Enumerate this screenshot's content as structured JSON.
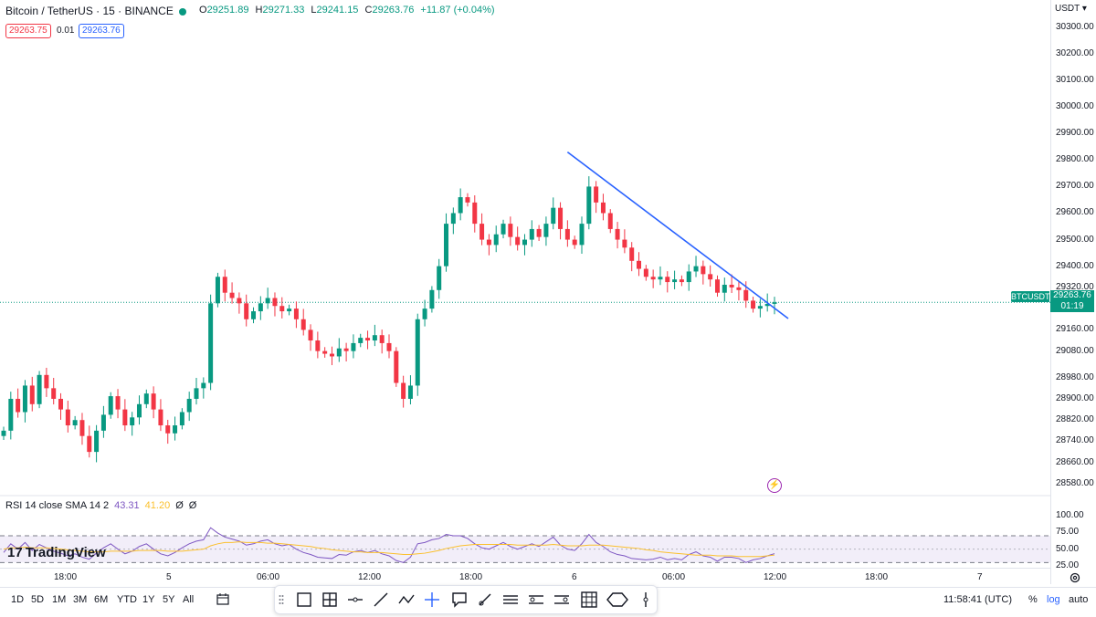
{
  "header": {
    "title": "Bitcoin / TetherUS · 15 · BINANCE",
    "ohlc": {
      "o_label": "O",
      "o": "29251.89",
      "h_label": "H",
      "h": "29271.33",
      "l_label": "L",
      "l": "29241.15",
      "c_label": "C",
      "c": "29263.76",
      "change": "+11.87 (+0.04%)"
    },
    "sell_price": "29263.75",
    "spread": "0.01",
    "buy_price": "29263.76"
  },
  "price_axis": {
    "currency": "USDT",
    "ticks": [
      "30300.00",
      "30200.00",
      "30100.00",
      "30000.00",
      "29900.00",
      "29800.00",
      "29700.00",
      "29600.00",
      "29500.00",
      "29400.00",
      "29320.00",
      "29160.00",
      "29080.00",
      "28980.00",
      "28900.00",
      "28820.00",
      "28740.00",
      "28660.00",
      "28580.00"
    ],
    "symbol_tag": "BTCUSDT",
    "last_price": "29263.76",
    "countdown": "01:19"
  },
  "rsi": {
    "name": "RSI 14 close SMA 14 2",
    "rsi_value": "43.31",
    "sma_value": "41.20",
    "extra1": "Ø",
    "extra2": "Ø",
    "ticks": [
      "100.00",
      "75.00",
      "50.00",
      "25.00"
    ]
  },
  "logo": "TradingView",
  "time_axis": {
    "ticks": [
      "18:00",
      "5",
      "06:00",
      "12:00",
      "18:00",
      "6",
      "06:00",
      "12:00",
      "18:00",
      "7"
    ]
  },
  "bottom_bar": {
    "ranges": [
      "1D",
      "5D",
      "1M",
      "3M",
      "6M",
      "YTD",
      "1Y",
      "5Y",
      "All"
    ],
    "clock": "11:58:41 (UTC)",
    "percent": "%",
    "log": "log",
    "auto": "auto"
  },
  "colors": {
    "up": "#089981",
    "down": "#f23645",
    "trendline": "#2962ff",
    "rsi": "#7e57c2",
    "rsi_sma": "#fbc02d",
    "rsi_band": "#7e57c2"
  },
  "icons": [
    "calendar-icon",
    "rectangle-icon",
    "frame-icon",
    "horizontal-ray-icon",
    "trend-line-icon",
    "path-icon",
    "crosshair-icon",
    "callout-icon",
    "brush-icon",
    "parallel-channel-icon",
    "long-position-icon",
    "short-position-icon",
    "grid-icon",
    "ellipse-icon",
    "vertical-line-icon",
    "settings-icon"
  ],
  "chart_data": {
    "type": "candlestick",
    "symbol": "BTCUSDT",
    "interval": "15",
    "ylim": [
      28540,
      30340
    ],
    "closes": [
      28780,
      28900,
      28850,
      28950,
      28880,
      28990,
      28940,
      28900,
      28860,
      28800,
      28820,
      28760,
      28700,
      28780,
      28840,
      28910,
      28860,
      28800,
      28830,
      28880,
      28920,
      28860,
      28800,
      28770,
      28800,
      28850,
      28900,
      28940,
      28960,
      29260,
      29360,
      29300,
      29280,
      29260,
      29200,
      29230,
      29260,
      29280,
      29250,
      29230,
      29240,
      29200,
      29160,
      29120,
      29080,
      29070,
      29060,
      29090,
      29080,
      29110,
      29130,
      29120,
      29140,
      29110,
      29080,
      28960,
      28900,
      28950,
      29200,
      29240,
      29310,
      29400,
      29560,
      29600,
      29660,
      29640,
      29560,
      29500,
      29480,
      29520,
      29560,
      29510,
      29480,
      29500,
      29540,
      29510,
      29560,
      29620,
      29540,
      29500,
      29480,
      29560,
      29700,
      29640,
      29600,
      29540,
      29500,
      29470,
      29420,
      29390,
      29360,
      29350,
      29360,
      29340,
      29350,
      29340,
      29380,
      29400,
      29370,
      29350,
      29300,
      29330,
      29320,
      29310,
      29270,
      29240,
      29250,
      29258,
      29263.76
    ],
    "trendline": {
      "from": {
        "bar": 79,
        "price": 29830
      },
      "to": {
        "bar": 108,
        "price": 29230
      }
    },
    "rsi_values": [
      45,
      58,
      50,
      60,
      48,
      57,
      52,
      47,
      44,
      40,
      43,
      38,
      35,
      44,
      52,
      58,
      50,
      43,
      47,
      54,
      58,
      50,
      43,
      40,
      45,
      52,
      58,
      62,
      64,
      82,
      74,
      68,
      65,
      62,
      56,
      58,
      62,
      64,
      58,
      55,
      57,
      50,
      45,
      42,
      38,
      37,
      36,
      42,
      41,
      46,
      48,
      45,
      48,
      43,
      40,
      33,
      30,
      38,
      58,
      60,
      64,
      66,
      72,
      70,
      70,
      66,
      58,
      52,
      50,
      55,
      60,
      54,
      50,
      54,
      58,
      54,
      61,
      68,
      56,
      50,
      48,
      58,
      72,
      60,
      54,
      46,
      42,
      40,
      36,
      35,
      34,
      35,
      38,
      34,
      36,
      34,
      42,
      46,
      40,
      38,
      32,
      38,
      38,
      36,
      30,
      34,
      36,
      40,
      43.31
    ],
    "rsi_sma_values": [
      50,
      52,
      52,
      53,
      52,
      52,
      52,
      51,
      50,
      49,
      48,
      47,
      46,
      46,
      46,
      47,
      47,
      47,
      47,
      48,
      48,
      48,
      48,
      47,
      47,
      47,
      48,
      49,
      50,
      55,
      58,
      60,
      60,
      61,
      60,
      60,
      60,
      59,
      59,
      58,
      57,
      56,
      55,
      54,
      52,
      51,
      49,
      48,
      47,
      46,
      46,
      45,
      45,
      45,
      44,
      43,
      42,
      42,
      43,
      44,
      46,
      48,
      51,
      53,
      55,
      56,
      57,
      57,
      57,
      57,
      57,
      57,
      56,
      56,
      56,
      56,
      56,
      57,
      56,
      55,
      55,
      55,
      56,
      56,
      56,
      55,
      54,
      53,
      52,
      51,
      49,
      48,
      46,
      45,
      44,
      43,
      42,
      41,
      41,
      41,
      40,
      40,
      40,
      39,
      39,
      39,
      39,
      40,
      41.2
    ],
    "rsi_bands": [
      70,
      30
    ],
    "rsi_midline": 50
  }
}
